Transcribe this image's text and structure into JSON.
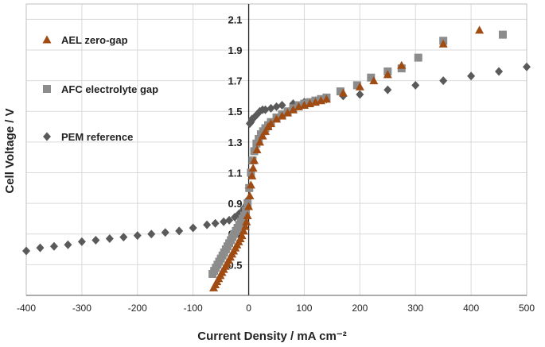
{
  "chart_data": {
    "type": "scatter",
    "xlabel": "Current Density / mA cm⁻²",
    "ylabel": "Cell Voltage / V",
    "xlim": [
      -400,
      500
    ],
    "ylim": [
      0.3,
      2.2
    ],
    "x_ticks": [
      -400,
      -300,
      -200,
      -100,
      0,
      100,
      200,
      300,
      400,
      500
    ],
    "y_ticks": [
      0.5,
      0.7,
      0.9,
      1.1,
      1.3,
      1.5,
      1.7,
      1.9,
      2.1
    ],
    "x_tick_labels": [
      "-400",
      "-300",
      "-200",
      "-100",
      "0",
      "100",
      "200",
      "300",
      "400",
      "500"
    ],
    "y_tick_labels": [
      "0.5",
      "0.7",
      "0.9",
      "1.1",
      "1.3",
      "1.5",
      "1.7",
      "1.9",
      "2.1"
    ],
    "grid": true,
    "legend_position": "top-left",
    "series": [
      {
        "name": "AEL zero-gap",
        "marker": "triangle",
        "color": "#A04B12",
        "x": [
          -63,
          -60,
          -57,
          -54,
          -51,
          -48,
          -45,
          -42,
          -39,
          -36,
          -33,
          -30,
          -27,
          -24,
          -21,
          -18,
          -15,
          -12,
          -9,
          -6,
          -4,
          -2,
          0,
          2,
          4,
          6,
          8,
          10,
          15,
          20,
          25,
          30,
          35,
          40,
          50,
          60,
          70,
          80,
          90,
          100,
          110,
          120,
          130,
          140,
          170,
          200,
          225,
          250,
          275,
          350,
          415
        ],
        "y": [
          0.35,
          0.37,
          0.39,
          0.41,
          0.43,
          0.45,
          0.47,
          0.49,
          0.51,
          0.53,
          0.55,
          0.57,
          0.59,
          0.61,
          0.63,
          0.65,
          0.67,
          0.69,
          0.72,
          0.75,
          0.78,
          0.82,
          0.88,
          0.95,
          1.02,
          1.08,
          1.13,
          1.18,
          1.25,
          1.3,
          1.34,
          1.37,
          1.4,
          1.42,
          1.45,
          1.47,
          1.49,
          1.51,
          1.53,
          1.54,
          1.55,
          1.56,
          1.57,
          1.58,
          1.62,
          1.66,
          1.7,
          1.74,
          1.8,
          1.94,
          2.03
        ]
      },
      {
        "name": "AFC electrolyte gap",
        "marker": "square",
        "color": "#8C8C8C",
        "x": [
          -65,
          -62,
          -59,
          -56,
          -53,
          -50,
          -47,
          -44,
          -41,
          -38,
          -35,
          -32,
          -29,
          -26,
          -23,
          -20,
          -17,
          -14,
          -11,
          -8,
          -5,
          -2,
          1,
          4,
          7,
          10,
          14,
          18,
          22,
          26,
          30,
          35,
          40,
          50,
          60,
          70,
          80,
          90,
          100,
          110,
          120,
          130,
          140,
          165,
          195,
          220,
          250,
          275,
          305,
          350,
          457
        ],
        "y": [
          0.44,
          0.46,
          0.48,
          0.5,
          0.52,
          0.54,
          0.56,
          0.58,
          0.6,
          0.62,
          0.64,
          0.66,
          0.68,
          0.7,
          0.72,
          0.74,
          0.76,
          0.78,
          0.8,
          0.82,
          0.85,
          0.9,
          1.0,
          1.1,
          1.18,
          1.24,
          1.29,
          1.32,
          1.35,
          1.37,
          1.39,
          1.41,
          1.43,
          1.46,
          1.48,
          1.5,
          1.52,
          1.54,
          1.55,
          1.56,
          1.57,
          1.58,
          1.59,
          1.63,
          1.67,
          1.72,
          1.76,
          1.78,
          1.85,
          1.96,
          2.0
        ]
      },
      {
        "name": "PEM reference",
        "marker": "diamond",
        "color": "#5A5A5A",
        "x": [
          -400,
          -375,
          -350,
          -325,
          -300,
          -275,
          -250,
          -225,
          -200,
          -175,
          -150,
          -125,
          -100,
          -75,
          -60,
          -45,
          -35,
          -25,
          -18,
          -12,
          -8,
          -4,
          -2,
          0,
          2,
          4,
          6,
          10,
          15,
          20,
          25,
          30,
          40,
          50,
          60,
          80,
          100,
          120,
          140,
          170,
          200,
          250,
          300,
          350,
          400,
          450,
          500
        ],
        "y": [
          0.59,
          0.61,
          0.62,
          0.63,
          0.65,
          0.66,
          0.67,
          0.68,
          0.69,
          0.7,
          0.71,
          0.72,
          0.74,
          0.76,
          0.77,
          0.78,
          0.79,
          0.81,
          0.83,
          0.85,
          0.87,
          0.89,
          0.92,
          1.0,
          1.42,
          1.43,
          1.45,
          1.46,
          1.48,
          1.5,
          1.51,
          1.51,
          1.52,
          1.53,
          1.54,
          1.55,
          1.56,
          1.57,
          1.58,
          1.6,
          1.61,
          1.64,
          1.67,
          1.7,
          1.73,
          1.76,
          1.79
        ]
      }
    ]
  }
}
